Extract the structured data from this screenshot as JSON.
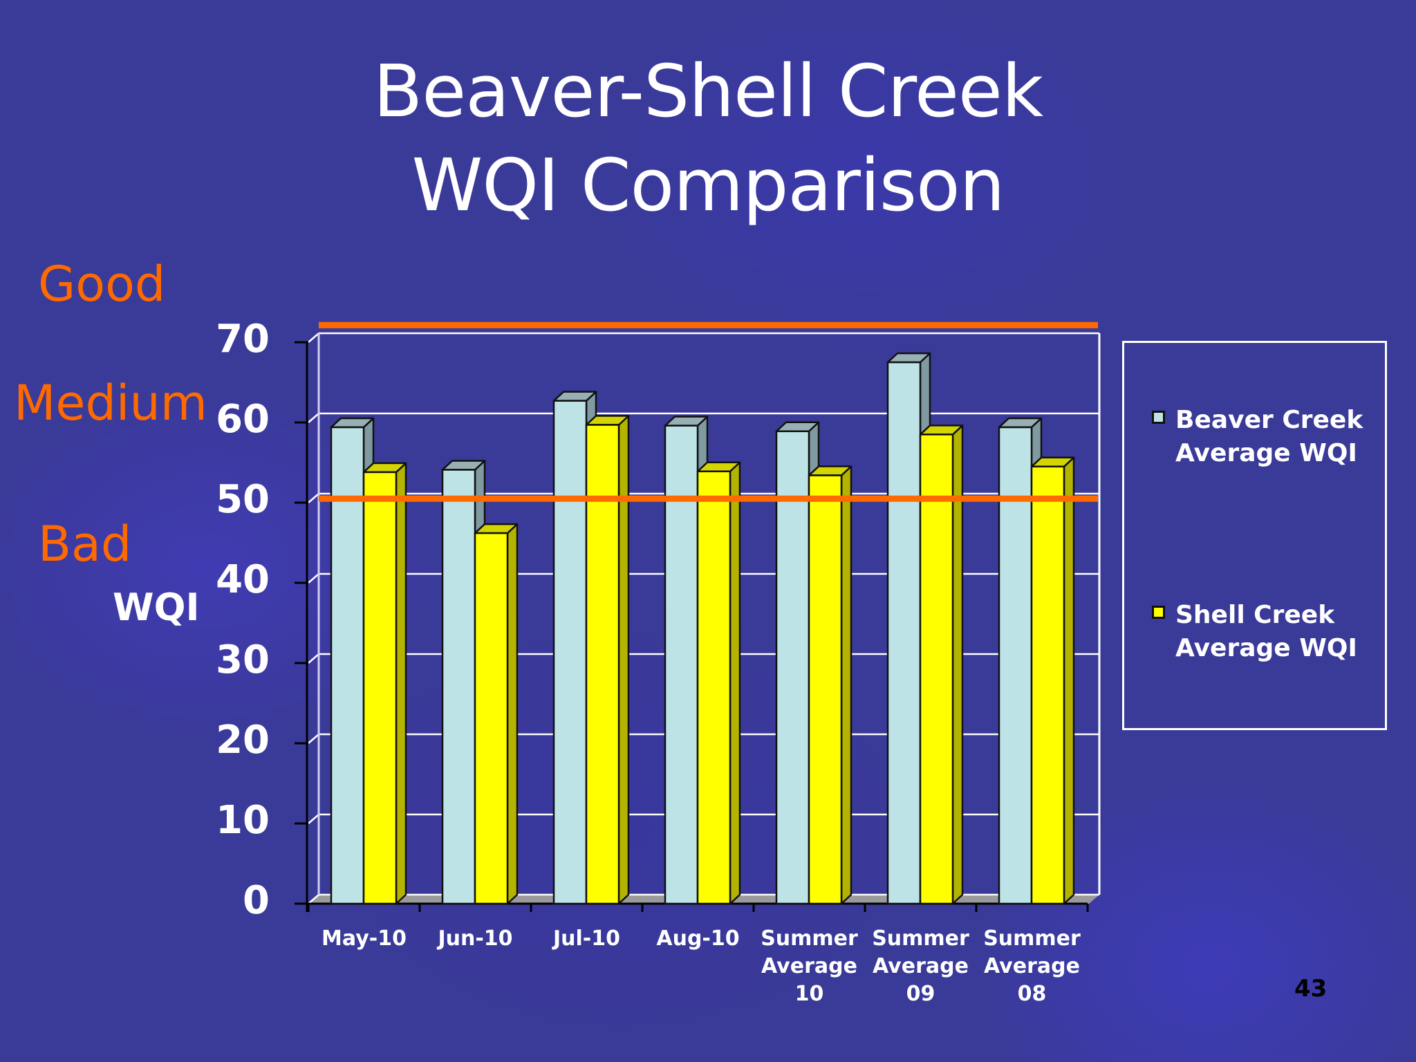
{
  "slide": {
    "title_line1": "Beaver-Shell Creek",
    "title_line2": "WQI Comparison",
    "page_number": "43",
    "zones": {
      "good": "Good",
      "medium": "Medium",
      "bad": "Bad"
    },
    "y_axis_label": "WQI",
    "colors": {
      "background": "#3a3a98",
      "zone_text": "#ff6a00",
      "threshold_line": "#ff6a00",
      "beaver_front": "#bde3e6",
      "beaver_side": "#7f9aa0",
      "beaver_top": "#98b0b4",
      "shell_front": "#ffff00",
      "shell_side": "#b3b300",
      "shell_top": "#d4d400",
      "floor": "#9a9a9a",
      "grid": "#ffffff"
    }
  },
  "legend": {
    "items": [
      {
        "label": "Beaver Creek\nAverage WQI",
        "color": "#bde3e6"
      },
      {
        "label": "Shell Creek\nAverage WQI",
        "color": "#ffff00"
      }
    ]
  },
  "chart_data": {
    "type": "bar",
    "title": "Beaver-Shell Creek WQI Comparison",
    "xlabel": "",
    "ylabel": "WQI",
    "ylim": [
      0,
      70
    ],
    "yticks": [
      0,
      10,
      20,
      30,
      40,
      50,
      60,
      70
    ],
    "grid": true,
    "legend_position": "right",
    "style": "3d-clustered-column",
    "categories": [
      "May-10",
      "Jun-10",
      "Jul-10",
      "Aug-10",
      "Summer Average 10",
      "Summer Average 09",
      "Summer Average 08"
    ],
    "category_labels": [
      "May-10",
      "Jun-10",
      "Jul-10",
      "Aug-10",
      "Summer\nAverage\n10",
      "Summer\nAverage\n09",
      "Summer\nAverage\n08"
    ],
    "series": [
      {
        "name": "Beaver Creek Average WQI",
        "values": [
          59.4,
          54.1,
          62.7,
          59.6,
          58.9,
          67.5,
          59.4
        ]
      },
      {
        "name": "Shell Creek Average WQI",
        "values": [
          53.8,
          46.2,
          59.7,
          53.9,
          53.4,
          58.5,
          54.5
        ]
      }
    ],
    "annotations": [
      {
        "type": "hline",
        "value": 70.5,
        "color": "#ff6a00",
        "meaning": "Good / Medium boundary"
      },
      {
        "type": "hline",
        "value": 50.5,
        "color": "#ff6a00",
        "meaning": "Medium / Bad boundary"
      },
      {
        "type": "text",
        "label": "Good"
      },
      {
        "type": "text",
        "label": "Medium"
      },
      {
        "type": "text",
        "label": "Bad"
      }
    ]
  }
}
